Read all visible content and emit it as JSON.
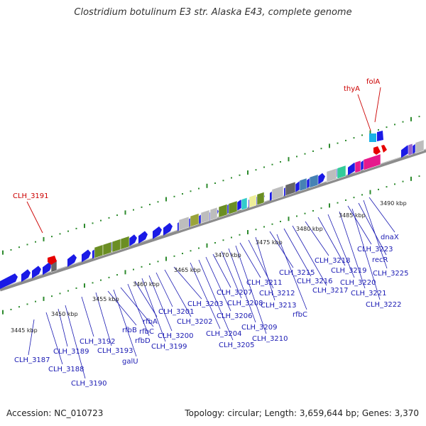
{
  "title": "Clostridium botulinum E3 str. Alaska E43, complete genome",
  "footer": {
    "accession": "Accession: NC_010723",
    "summary": "Topology: circular; Length: 3,659,644 bp; Genes: 3,370"
  },
  "colors": {
    "backbone": "#8c8c8c",
    "tick": "#2e8b2e",
    "forward_gene": "#1a1ae6",
    "highlight_gene": "#e60000",
    "label_blue": "#1a1ab3",
    "label_red": "#cc0000"
  },
  "scale_labels": [
    "3445 kbp",
    "3450 kbp",
    "3455 kbp",
    "3460 kbp",
    "3465 kbp",
    "3470 kbp",
    "3475 kbp",
    "3480 kbp",
    "3485 kbp",
    "3490 kbp"
  ],
  "highlight_labels": [
    "CLH_3191",
    "thyA",
    "folA"
  ],
  "gene_labels": [
    "CLH_3187",
    "CLH_3188",
    "CLH_3189",
    "CLH_3190",
    "CLH_3192",
    "CLH_3193",
    "galU",
    "rfbB",
    "rfbC",
    "rfbD",
    "rfbA",
    "CLH_3199",
    "CLH_3200",
    "CLH_3201",
    "CLH_3202",
    "CLH_3203",
    "CLH_3204",
    "CLH_3205",
    "CLH_3206",
    "CLH_3207",
    "CLH_3208",
    "CLH_3209",
    "CLH_3210",
    "CLH_3211",
    "CLH_3212",
    "CLH_3213",
    "rfbC",
    "CLH_3215",
    "CLH_3216",
    "CLH_3217",
    "CLH_3218",
    "CLH_3219",
    "CLH_3220",
    "CLH_3221",
    "CLH_3222",
    "CLH_3223",
    "recR",
    "CLH_3225",
    "dnaX"
  ]
}
